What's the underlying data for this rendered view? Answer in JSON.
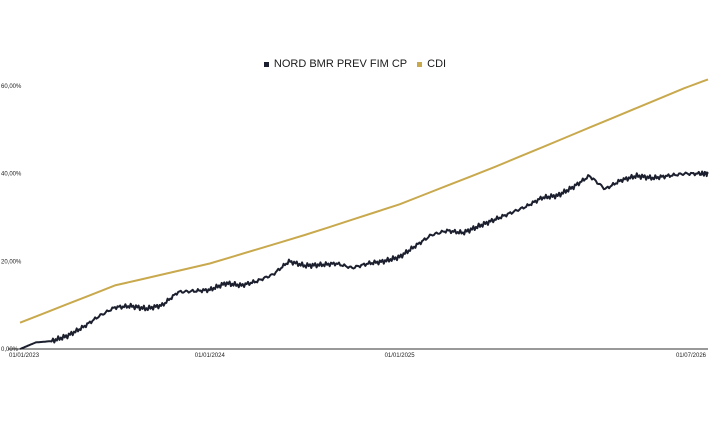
{
  "chart_data": {
    "type": "line",
    "title": "",
    "xlabel": "",
    "ylabel": "",
    "legend_position": "top-center",
    "grid": false,
    "ylim": [
      0,
      62
    ],
    "y_ticks": [
      {
        "value": 0,
        "label": "0,00%"
      },
      {
        "value": 20,
        "label": "20,00%"
      },
      {
        "value": 40,
        "label": "40,00%"
      },
      {
        "value": 60,
        "label": "60,00%"
      }
    ],
    "x_ticks": [
      {
        "value": 0,
        "label": "01/01/2023"
      },
      {
        "value": 12,
        "label": "01/01/2024"
      },
      {
        "value": 24,
        "label": "01/01/2025"
      },
      {
        "value": 42,
        "label": "01/07/2026"
      }
    ],
    "x_range": [
      0,
      43.5
    ],
    "series": [
      {
        "name": "NORD BMR PREV FIM CP",
        "color": "#1c1f2e",
        "x": [
          0,
          1,
          2,
          3,
          4,
          5,
          6,
          7,
          8,
          9,
          10,
          11,
          12,
          13,
          14,
          15,
          16,
          17,
          18,
          19,
          20,
          21,
          22,
          23,
          24,
          25,
          26,
          27,
          28,
          29,
          30,
          31,
          32,
          33,
          34,
          35,
          36,
          37,
          38,
          39,
          40,
          41,
          42,
          43,
          43.5
        ],
        "values": [
          0,
          1.5,
          1.8,
          3,
          5,
          7.5,
          9.5,
          9.8,
          9.2,
          10,
          13,
          13.2,
          13.5,
          15,
          14.5,
          15.5,
          17,
          20,
          19,
          19.2,
          19.5,
          18.5,
          19.5,
          20,
          21,
          23.5,
          26,
          27,
          26.5,
          28,
          29.5,
          31,
          32.5,
          34.5,
          35,
          37,
          39.5,
          36.5,
          38.5,
          39.5,
          39,
          39.5,
          40,
          40,
          40
        ]
      },
      {
        "name": "CDI",
        "color": "#c9a94d",
        "x": [
          0,
          6,
          12,
          18,
          24,
          30,
          36,
          42,
          43.5
        ],
        "values": [
          6,
          14.5,
          19.5,
          26,
          33,
          41.5,
          50.5,
          59.5,
          61.5
        ]
      }
    ]
  }
}
